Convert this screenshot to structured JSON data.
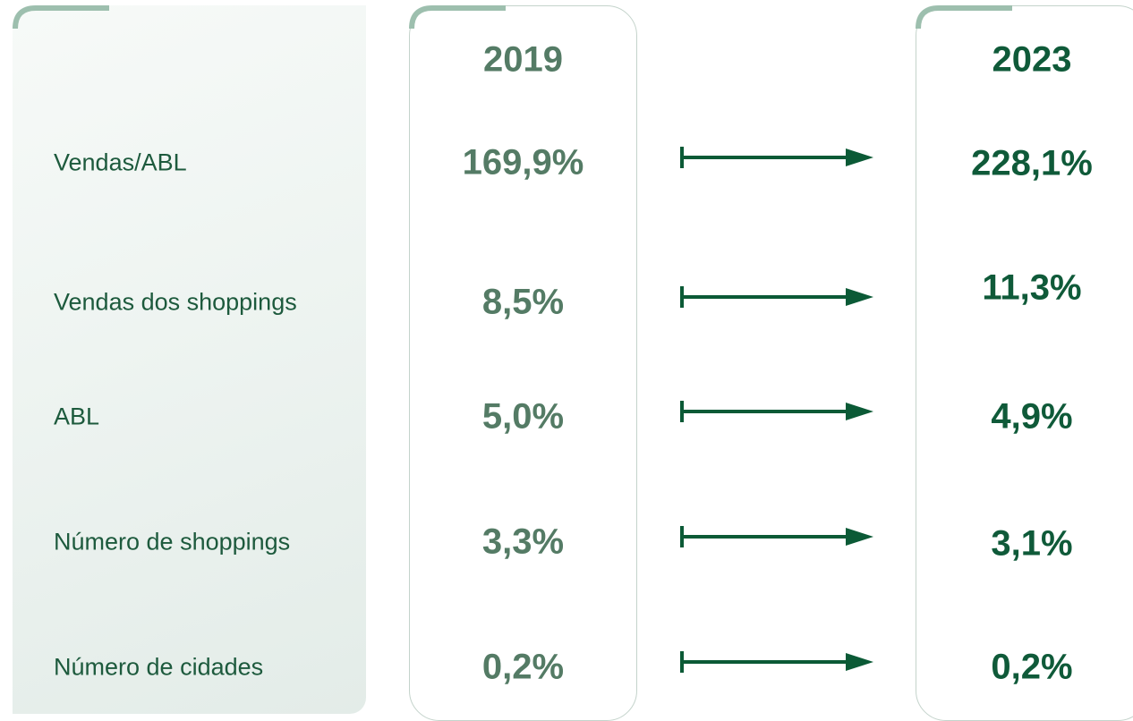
{
  "header": {
    "year_start": "2019",
    "year_end": "2023"
  },
  "rows": [
    {
      "label": "Vendas/ABL",
      "value_start": "169,9%",
      "value_end": "228,1%"
    },
    {
      "label": "Vendas dos shoppings",
      "value_start": "8,5%",
      "value_end": "11,3%"
    },
    {
      "label": "ABL",
      "value_start": "5,0%",
      "value_end": "4,9%"
    },
    {
      "label": "Número de shoppings",
      "value_start": "3,3%",
      "value_end": "3,1%"
    },
    {
      "label": "Número de cidades",
      "value_start": "0,2%",
      "value_end": "0,2%"
    }
  ]
}
